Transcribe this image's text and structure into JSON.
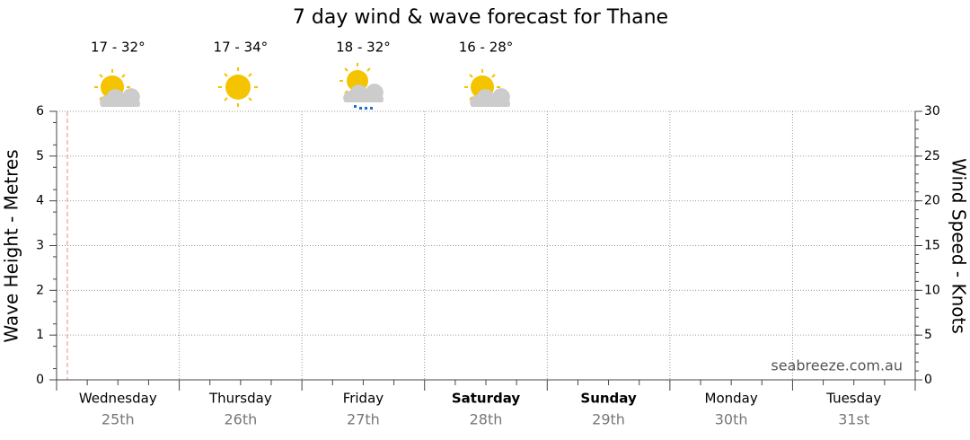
{
  "chart_data": {
    "type": "line",
    "title": "7 day wind & wave forecast for Thane",
    "ylabel": "Wave Height - Metres",
    "y2label": "Wind Speed - Knots",
    "categories": [
      "Wednesday",
      "Thursday",
      "Friday",
      "Saturday",
      "Sunday",
      "Monday",
      "Tuesday"
    ],
    "dates": [
      "25th",
      "26th",
      "27th",
      "28th",
      "29th",
      "30th",
      "31st"
    ],
    "bold_categories": [
      false,
      false,
      false,
      true,
      true,
      false,
      false
    ],
    "temperatures": [
      "17 - 32°",
      "17 - 34°",
      "18 - 32°",
      "16 - 28°"
    ],
    "annotation": "seabreeze.com.au",
    "series": [],
    "ylim": [
      0,
      6
    ],
    "yticks": [
      0,
      1,
      2,
      3,
      4,
      5,
      6
    ],
    "y2lim": [
      0,
      30
    ],
    "y2ticks": [
      0,
      5,
      10,
      15,
      20,
      25,
      30
    ],
    "grid": true
  }
}
